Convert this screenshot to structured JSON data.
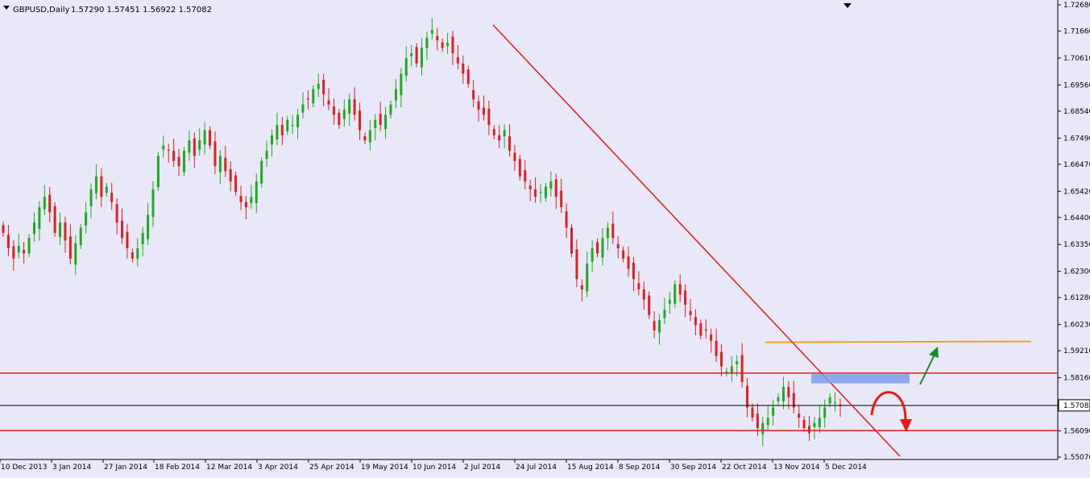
{
  "header": {
    "symbol": "GBPUSD,Daily",
    "ohlc": "1.57290 1.57451 1.56922 1.57082"
  },
  "colors": {
    "background": "#e8e8f8",
    "bull": "#1faa1f",
    "bear": "#e02020",
    "trendline": "#e31b1b",
    "support_resistance": "#e31b1b",
    "target_line": "#f0a020",
    "zone": "#7f9ee8",
    "arrow_up": "#1a8a2a",
    "arrow_down": "#e31b1b",
    "current_price_line": "#000000"
  },
  "chart_data": {
    "type": "candlestick",
    "title": "GBPUSD,Daily",
    "ylim": [
      1.5507,
      1.7268
    ],
    "y_ticks": [
      "1.72680",
      "1.71660",
      "1.70610",
      "1.69560",
      "1.68540",
      "1.67490",
      "1.66470",
      "1.65420",
      "1.64400",
      "1.63350",
      "1.62300",
      "1.61280",
      "1.60230",
      "1.59210",
      "1.58160",
      "1.57082",
      "1.56090",
      "1.55070"
    ],
    "current_price": "1.57082",
    "x_ticks": [
      "10 Dec 2013",
      "3 Jan 2014",
      "27 Jan 2014",
      "18 Feb 2014",
      "12 Mar 2014",
      "3 Apr 2014",
      "25 Apr 2014",
      "19 May 2014",
      "10 Jun 2014",
      "2 Jul 2014",
      "24 Jul 2014",
      "15 Aug 2014",
      "8 Sep 2014",
      "30 Sep 2014",
      "22 Oct 2014",
      "13 Nov 2014",
      "5 Dec 2014"
    ],
    "closes": [
      1.638,
      1.632,
      1.628,
      1.633,
      1.63,
      1.636,
      1.642,
      1.648,
      1.652,
      1.646,
      1.638,
      1.642,
      1.635,
      1.628,
      1.634,
      1.64,
      1.646,
      1.655,
      1.66,
      1.652,
      1.656,
      1.65,
      1.642,
      1.636,
      1.632,
      1.628,
      1.632,
      1.638,
      1.645,
      1.655,
      1.668,
      1.672,
      1.67,
      1.666,
      1.664,
      1.67,
      1.674,
      1.668,
      1.674,
      1.678,
      1.672,
      1.664,
      1.668,
      1.662,
      1.658,
      1.654,
      1.65,
      1.648,
      1.652,
      1.658,
      1.666,
      1.67,
      1.676,
      1.68,
      1.676,
      1.682,
      1.68,
      1.684,
      1.688,
      1.69,
      1.694,
      1.696,
      1.692,
      1.688,
      1.684,
      1.68,
      1.686,
      1.69,
      1.684,
      1.678,
      1.674,
      1.678,
      1.682,
      1.68,
      1.684,
      1.688,
      1.694,
      1.7,
      1.706,
      1.708,
      1.704,
      1.71,
      1.714,
      1.717,
      1.713,
      1.71,
      1.712,
      1.708,
      1.704,
      1.7,
      1.696,
      1.69,
      1.686,
      1.684,
      1.68,
      1.676,
      1.674,
      1.678,
      1.67,
      1.666,
      1.66,
      1.658,
      1.655,
      1.652,
      1.654,
      1.656,
      1.658,
      1.652,
      1.648,
      1.64,
      1.63,
      1.62,
      1.616,
      1.626,
      1.632,
      1.63,
      1.636,
      1.64,
      1.636,
      1.632,
      1.628,
      1.624,
      1.62,
      1.616,
      1.612,
      1.606,
      1.6,
      1.604,
      1.608,
      1.612,
      1.618,
      1.614,
      1.61,
      1.606,
      1.602,
      1.598,
      1.6,
      1.596,
      1.59,
      1.586,
      1.584,
      1.586,
      1.588,
      1.58,
      1.57,
      1.566,
      1.562,
      1.564,
      1.566,
      1.57,
      1.574,
      1.578,
      1.574,
      1.57,
      1.566,
      1.562,
      1.56,
      1.564,
      1.566,
      1.57,
      1.574,
      1.572,
      1.571
    ],
    "horizontal_levels": [
      1.5834,
      1.561,
      1.5708
    ],
    "target_level": 1.5954,
    "trendline": {
      "from": {
        "date": "3 Jul 2014",
        "price": 1.719
      },
      "to": {
        "date": "22 Dec 2014",
        "price": 1.551
      }
    },
    "resistance_zone": {
      "from_date": "12 Nov 2014",
      "to_date": "14 Dec 2014",
      "low": 1.5794,
      "high": 1.583
    }
  }
}
